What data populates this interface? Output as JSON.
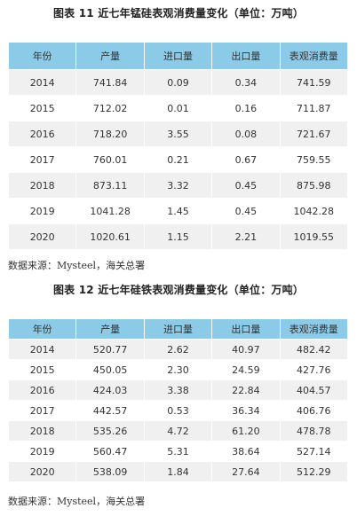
{
  "tables": [
    {
      "title": "图表 11   近七年锰硅表观消费量变化（单位：万吨）",
      "headers": [
        "年份",
        "产量",
        "进口量",
        "出口量",
        "表观消费量"
      ],
      "rows": [
        [
          "2014",
          "741.84",
          "0.09",
          "0.34",
          "741.59"
        ],
        [
          "2015",
          "712.02",
          "0.01",
          "0.16",
          "711.87"
        ],
        [
          "2016",
          "718.20",
          "3.55",
          "0.08",
          "721.67"
        ],
        [
          "2017",
          "760.01",
          "0.21",
          "0.67",
          "759.55"
        ],
        [
          "2018",
          "873.11",
          "3.32",
          "0.45",
          "875.98"
        ],
        [
          "2019",
          "1041.28",
          "1.45",
          "0.45",
          "1042.28"
        ],
        [
          "2020",
          "1020.61",
          "1.15",
          "2.21",
          "1019.55"
        ]
      ],
      "source": "数据来源：Mysteel，海关总署"
    },
    {
      "title": "图表 12   近七年硅铁表观消费量变化（单位：万吨）",
      "headers": [
        "年份",
        "产量",
        "进口量",
        "出口量",
        "表观消费量"
      ],
      "rows": [
        [
          "2014",
          "520.77",
          "2.62",
          "40.97",
          "482.42"
        ],
        [
          "2015",
          "450.05",
          "2.30",
          "24.59",
          "427.76"
        ],
        [
          "2016",
          "424.03",
          "3.38",
          "22.84",
          "404.57"
        ],
        [
          "2017",
          "442.57",
          "0.53",
          "36.34",
          "406.76"
        ],
        [
          "2018",
          "535.26",
          "4.72",
          "61.20",
          "478.78"
        ],
        [
          "2019",
          "560.47",
          "5.31",
          "38.64",
          "527.14"
        ],
        [
          "2020",
          "538.09",
          "1.84",
          "27.64",
          "512.29"
        ]
      ],
      "source": "数据来源：Mysteel，海关总署"
    }
  ],
  "colors": {
    "header_bg": "#8ccbe8",
    "odd_row_bg": "#f0f0f0",
    "even_row_bg": "#ffffff"
  }
}
